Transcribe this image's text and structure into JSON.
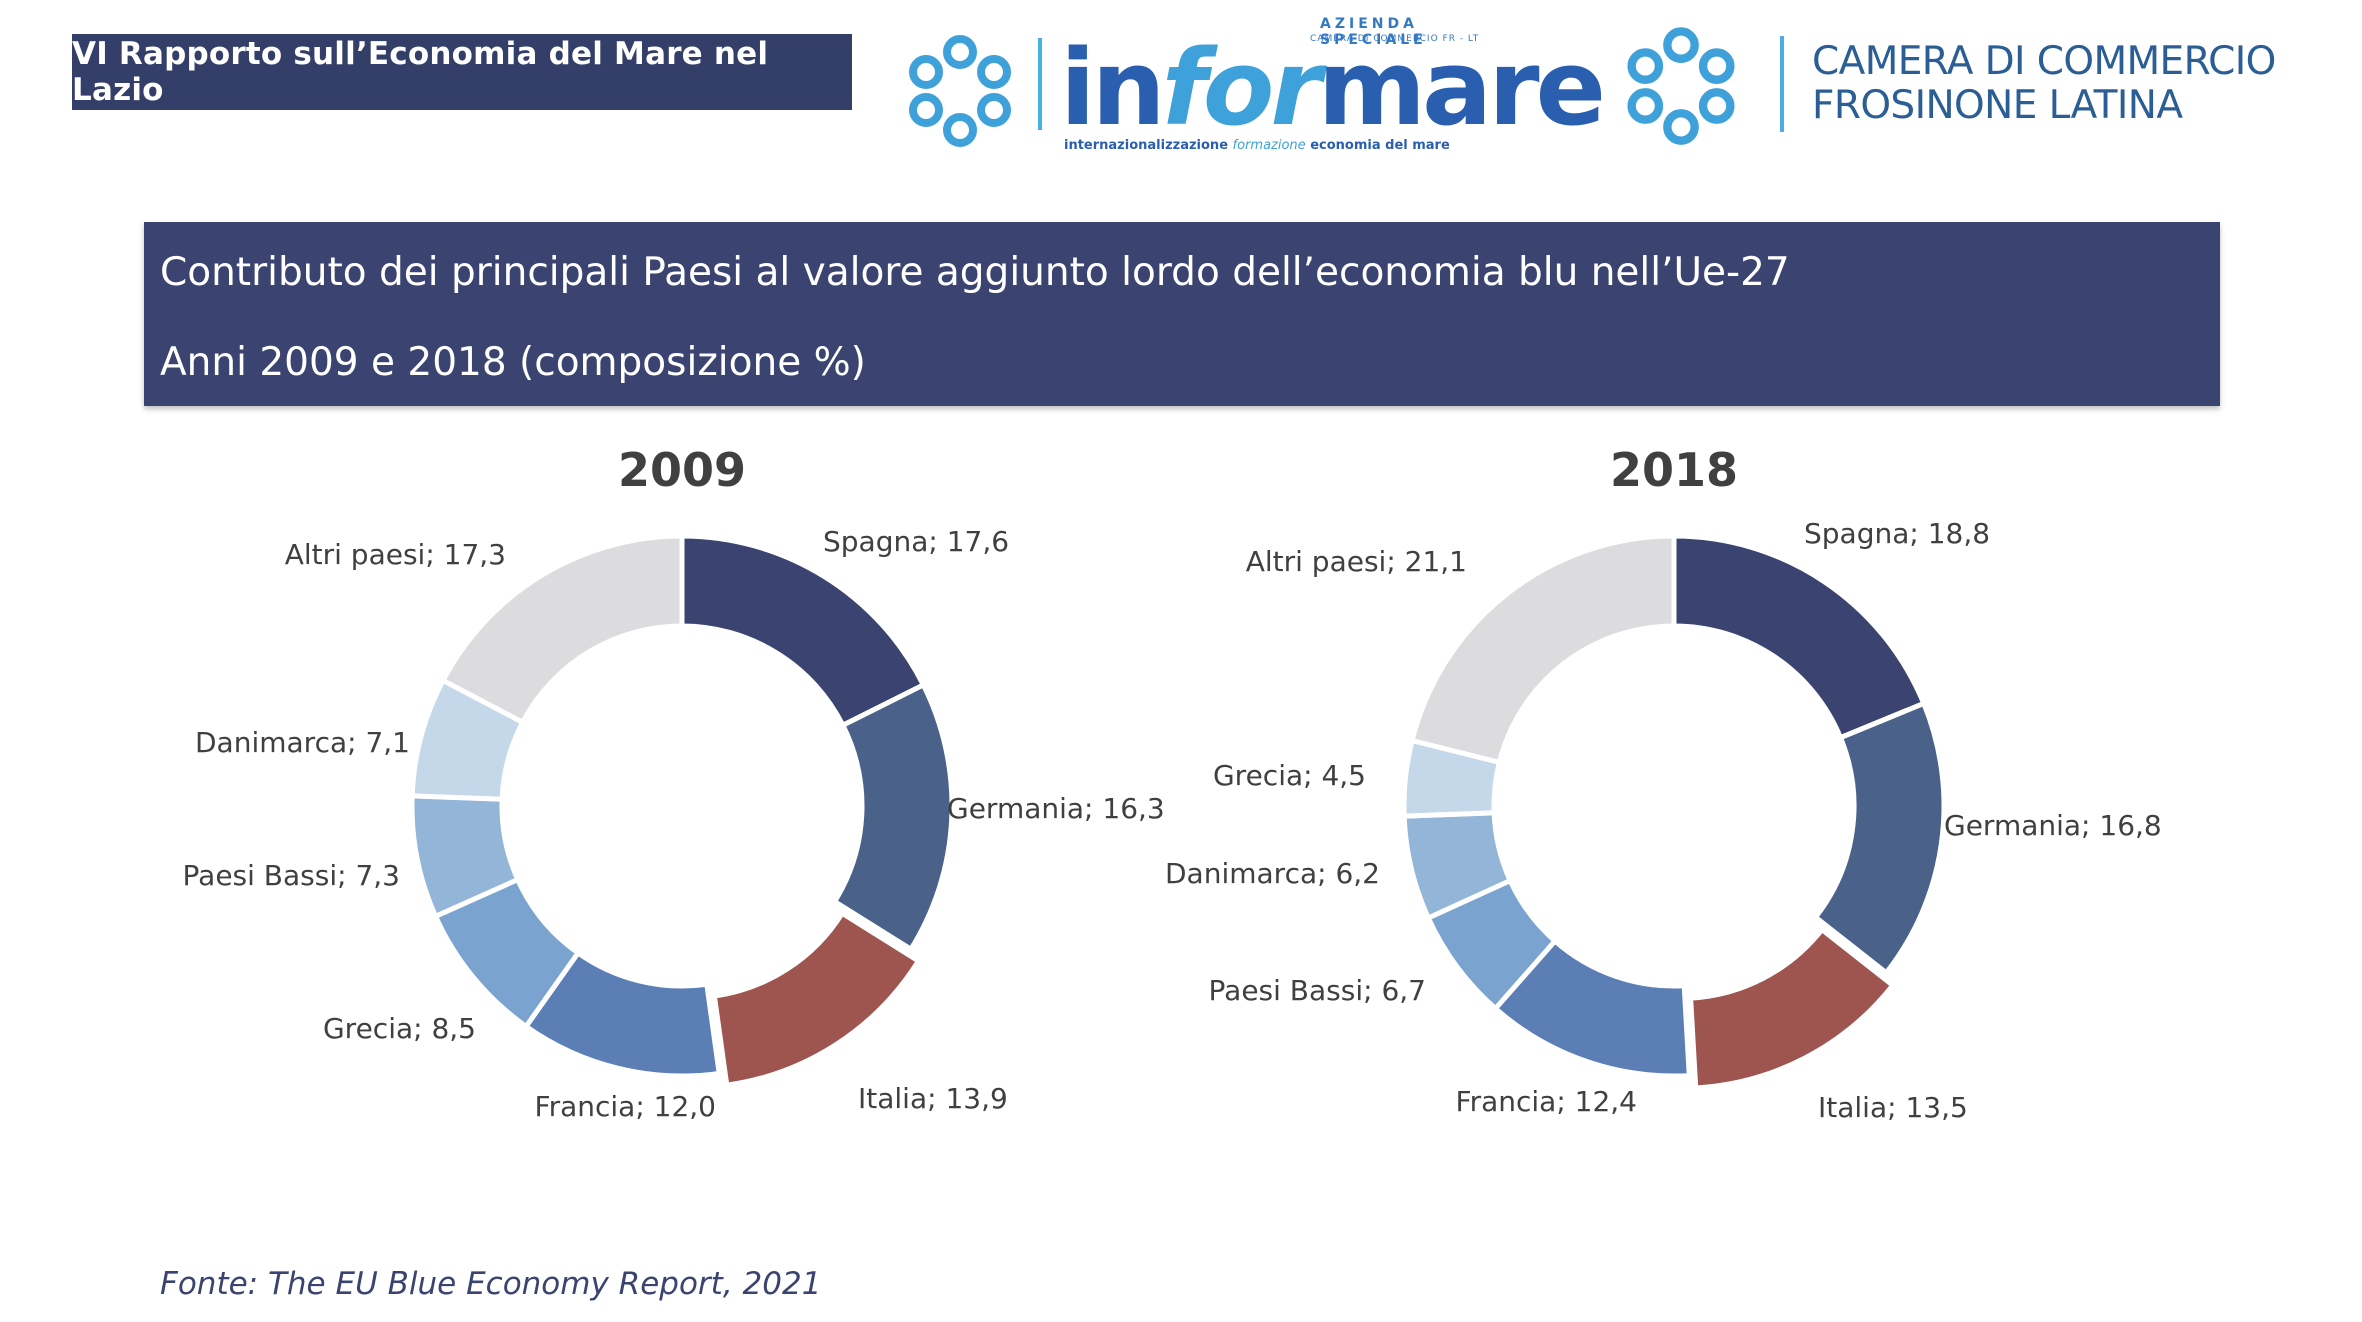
{
  "header": {
    "report_tag": "VI Rapporto sull’Economia del Mare nel Lazio",
    "informare": {
      "azienda": "AZIENDA SPECIALE",
      "camera_small": "CAMERA DI COMMERCIO FR - LT",
      "word_start": "in",
      "word_mid": "for",
      "word_end": "mare",
      "tagline_a": "internazionalizzazione ",
      "tagline_b": "formazione",
      "tagline_c": " economia del mare"
    },
    "camera": {
      "line1": "CAMERA DI COMMERCIO",
      "line2": "FROSINONE LATINA"
    },
    "colors": {
      "navy": "#343f69",
      "logo_blue": "#2a5fb0",
      "logo_light": "#3fa1d9"
    }
  },
  "title_box": {
    "line1": "Contributo dei principali Paesi al valore aggiunto lordo dell’economia blu nell’Ue-27",
    "line2": "Anni 2009 e 2018 (composizione %)"
  },
  "chart_data": [
    {
      "type": "pie",
      "title": "2009",
      "donut": true,
      "categories": [
        "Spagna",
        "Germania",
        "Italia",
        "Francia",
        "Grecia",
        "Paesi Bassi",
        "Danimarca",
        "Altri paesi"
      ],
      "values": [
        17.6,
        16.3,
        13.9,
        12.0,
        8.5,
        7.3,
        7.1,
        17.3
      ],
      "labels": [
        "Spagna; 17,6",
        "Germania; 16,3",
        "Italia; 13,9",
        "Francia; 12,0",
        "Grecia; 8,5",
        "Paesi Bassi; 7,3",
        "Danimarca; 7,1",
        "Altri paesi; 17,3"
      ],
      "colors": [
        "#3b4470",
        "#4a6289",
        "#9e544f",
        "#5b7fb4",
        "#7aa3cf",
        "#92b5d8",
        "#c5d8ea",
        "#dcdcdf"
      ],
      "exploded": [
        "Italia"
      ]
    },
    {
      "type": "pie",
      "title": "2018",
      "donut": true,
      "categories": [
        "Spagna",
        "Germania",
        "Italia",
        "Francia",
        "Paesi Bassi",
        "Danimarca",
        "Grecia",
        "Altri paesi"
      ],
      "values": [
        18.8,
        16.8,
        13.5,
        12.4,
        6.7,
        6.2,
        4.5,
        21.1
      ],
      "labels": [
        "Spagna; 18,8",
        "Germania; 16,8",
        "Italia; 13,5",
        "Francia; 12,4",
        "Paesi Bassi; 6,7",
        "Danimarca; 6,2",
        "Grecia; 4,5",
        "Altri paesi; 21,1"
      ],
      "colors": [
        "#3b4470",
        "#4a6289",
        "#9e544f",
        "#5b7fb4",
        "#7aa3cf",
        "#92b5d8",
        "#c5d8ea",
        "#dcdcdf"
      ],
      "exploded": [
        "Italia"
      ]
    }
  ],
  "footer": {
    "source": "Fonte: The EU Blue Economy Report, 2021"
  }
}
